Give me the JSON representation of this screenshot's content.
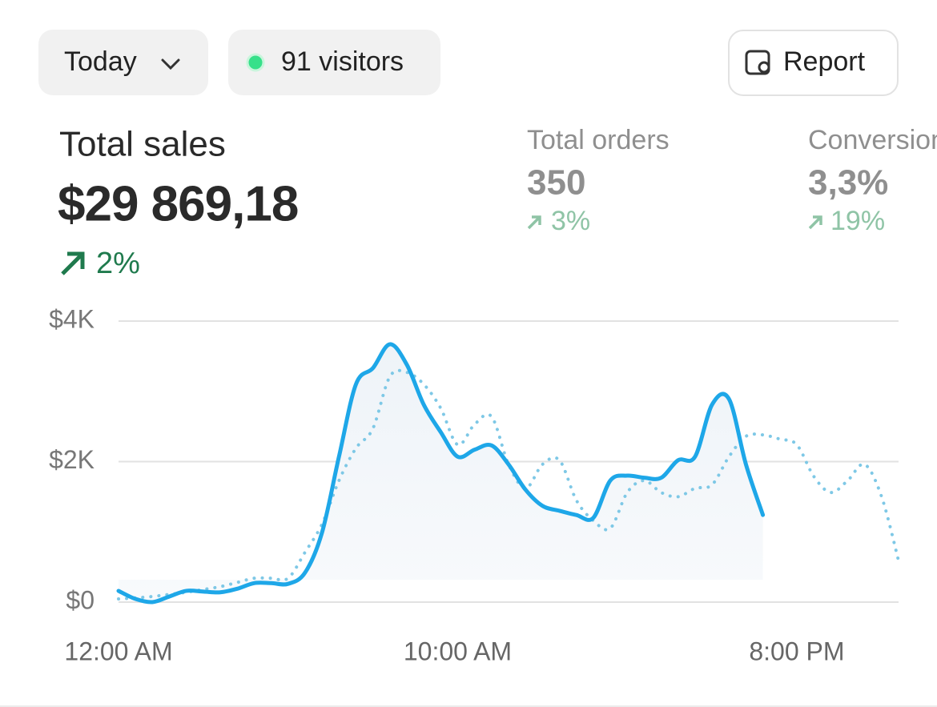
{
  "controls": {
    "period": "Today",
    "visitors": "91 visitors",
    "report": "Report"
  },
  "metrics": [
    {
      "label": "Total sales",
      "value": "$29 869,18",
      "change": "2%"
    },
    {
      "label": "Total orders",
      "value": "350",
      "change": "3%"
    },
    {
      "label": "Conversion",
      "value": "3,3%",
      "change": "19%"
    }
  ],
  "chart_data": {
    "type": "line",
    "x": [
      0,
      0.5,
      1,
      1.5,
      2,
      2.5,
      3,
      3.5,
      4,
      4.5,
      5,
      5.5,
      6,
      6.5,
      7,
      7.5,
      8,
      8.5,
      9,
      9.5,
      10,
      10.5,
      11,
      11.5,
      12,
      12.5,
      13,
      13.5,
      14,
      14.5,
      15,
      15.5,
      16,
      16.5,
      17,
      17.5,
      18,
      18.5,
      19,
      19.5,
      20,
      20.5,
      21,
      21.5,
      22,
      22.5,
      23
    ],
    "series": [
      {
        "color": "#1ea7e8",
        "style": "solid",
        "area": true,
        "values": [
          160,
          45,
          0,
          80,
          160,
          150,
          140,
          190,
          270,
          270,
          260,
          420,
          990,
          2070,
          3100,
          3330,
          3670,
          3380,
          2810,
          2420,
          2070,
          2170,
          2230,
          1960,
          1600,
          1370,
          1300,
          1240,
          1200,
          1730,
          1800,
          1770,
          1770,
          2020,
          2070,
          2810,
          2890,
          1960,
          1240,
          null,
          null,
          null,
          null,
          null,
          null,
          null,
          null
        ]
      },
      {
        "color": "#7ec8e6",
        "style": "dotted",
        "area": false,
        "values": [
          45,
          60,
          80,
          110,
          140,
          180,
          220,
          280,
          340,
          340,
          340,
          710,
          1110,
          1730,
          2190,
          2470,
          3210,
          3270,
          3100,
          2760,
          2240,
          2530,
          2640,
          1960,
          1620,
          1960,
          2020,
          1450,
          1160,
          1050,
          1560,
          1730,
          1560,
          1500,
          1620,
          1670,
          2070,
          2360,
          2380,
          2320,
          2240,
          1790,
          1560,
          1730,
          1960,
          1500,
          590
        ]
      }
    ],
    "xlim": [
      0,
      23
    ],
    "xticks": [
      {
        "value": 0,
        "label": "12:00 AM"
      },
      {
        "value": 10,
        "label": "10:00 AM"
      },
      {
        "value": 20,
        "label": "8:00 PM"
      }
    ],
    "ylim": [
      0,
      4000
    ],
    "yticks": [
      {
        "value": 0,
        "label": "$0"
      },
      {
        "value": 2000,
        "label": "$2K"
      },
      {
        "value": 4000,
        "label": "$4K"
      }
    ],
    "grid": true
  }
}
